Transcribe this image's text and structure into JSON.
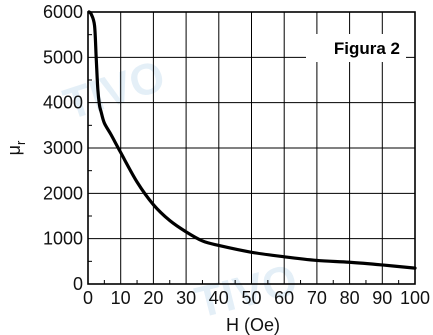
{
  "chart_data": {
    "type": "line",
    "title": "",
    "annotation": "Figura 2",
    "xlabel": "H (Oe)",
    "ylabel_main": "μ",
    "ylabel_sub": "r",
    "xlim": [
      0,
      100
    ],
    "ylim": [
      0,
      6000
    ],
    "xticks": [
      0,
      10,
      20,
      30,
      40,
      50,
      60,
      70,
      80,
      90,
      100
    ],
    "yticks": [
      0,
      1000,
      2000,
      3000,
      4000,
      5000,
      6000
    ],
    "xtick_labels": [
      "0",
      "10",
      "20",
      "30",
      "40",
      "50",
      "60",
      "70",
      "80",
      "90",
      "100"
    ],
    "ytick_labels": [
      "0",
      "1000",
      "2000",
      "3000",
      "4000",
      "5000",
      "6000"
    ],
    "grid": true,
    "series": [
      {
        "color": "#000000",
        "x": [
          0.3,
          1,
          2,
          2.5,
          3,
          3.5,
          4,
          5,
          7,
          10,
          15,
          20,
          25,
          30,
          35,
          40,
          50,
          60,
          70,
          80,
          90,
          100
        ],
        "y": [
          6000,
          5950,
          5700,
          5000,
          4300,
          3950,
          3800,
          3550,
          3300,
          2900,
          2250,
          1750,
          1400,
          1150,
          950,
          850,
          700,
          600,
          520,
          480,
          420,
          350
        ]
      }
    ]
  },
  "watermarks": [
    "TIVO",
    "TIVO"
  ]
}
